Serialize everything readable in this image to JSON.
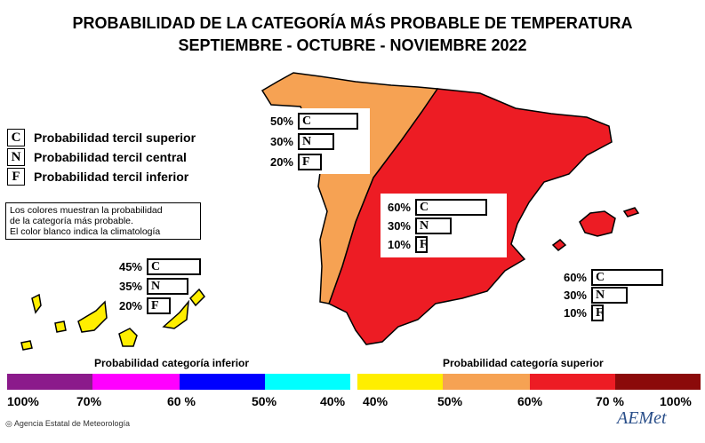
{
  "title": {
    "line1": "PROBABILIDAD DE LA CATEGORÍA MÁS PROBABLE DE TEMPERATURA",
    "line2": "SEPTIEMBRE - OCTUBRE - NOVIEMBRE 2022"
  },
  "legend": {
    "items": [
      {
        "letter": "C",
        "label": "Probabilidad  tercil superior"
      },
      {
        "letter": "N",
        "label": "Probabilidad  tercil central"
      },
      {
        "letter": "F",
        "label": "Probabilidad  tercil inferior"
      }
    ],
    "note_lines": [
      "Los colores muestran la probabilidad",
      "de la categoría más probable.",
      "El color blanco indica la climatología"
    ]
  },
  "regions": {
    "northwest": {
      "C": "50%",
      "N": "30%",
      "F": "20%",
      "C_value": 50,
      "N_value": 30,
      "F_value": 20
    },
    "peninsula": {
      "C": "60%",
      "N": "30%",
      "F": "10%",
      "C_value": 60,
      "N_value": 30,
      "F_value": 10
    },
    "canarias": {
      "C": "45%",
      "N": "35%",
      "F": "20%",
      "C_value": 45,
      "N_value": 35,
      "F_value": 20
    },
    "baleares": {
      "C": "60%",
      "N": "30%",
      "F": "10%",
      "C_value": 60,
      "N_value": 30,
      "F_value": 10
    }
  },
  "letters": {
    "C": "C",
    "N": "N",
    "F": "F"
  },
  "map_colors": {
    "west_zone": "#f6a253",
    "main_zone": "#ed1c24",
    "canarias": "#ffee00",
    "outline": "#000000"
  },
  "scale": {
    "inferior_label": "Probabilidad categoría inferior",
    "superior_label": "Probabilidad categoría superior",
    "inferior_colors": [
      "#8b1a8b",
      "#ff00ff",
      "#0000ff",
      "#00ffff"
    ],
    "superior_colors": [
      "#ffee00",
      "#f6a253",
      "#ed1c24",
      "#8b0a0a"
    ],
    "inferior_ticks": [
      "100%",
      "70%",
      "60 %",
      "50%",
      "40%"
    ],
    "superior_ticks": [
      "40%",
      "50%",
      "60%",
      "70 %",
      "100%"
    ]
  },
  "footer": {
    "agency": "Agencia Estatal de Meteorología",
    "logo_text": "AEMet"
  }
}
